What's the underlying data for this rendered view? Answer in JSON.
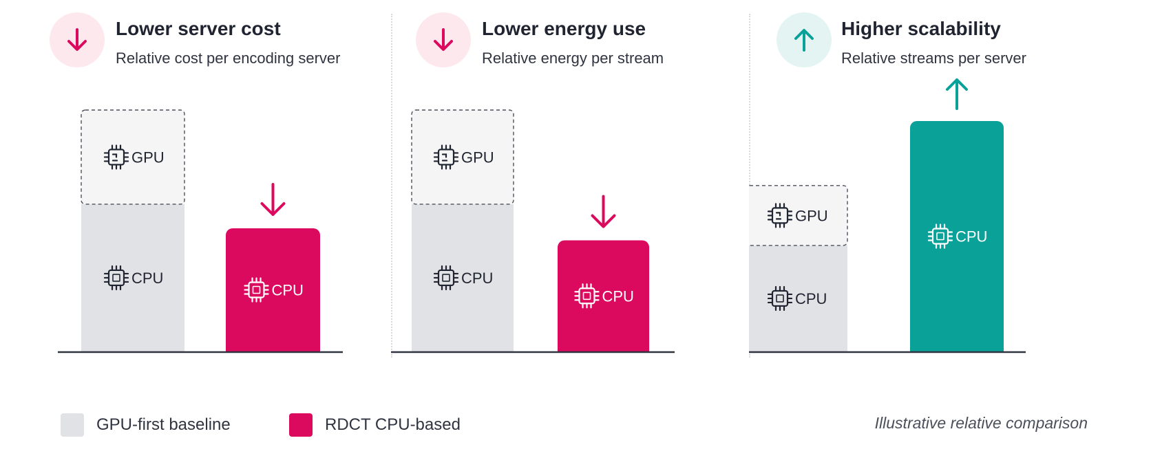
{
  "colors": {
    "baseline": "#e1e2e6",
    "gpu_segment": "#f5f5f6",
    "rdct": "#dc0a5e",
    "scalability": "#0aa198",
    "down_arrow": "#dc0a5e",
    "up_arrow": "#0aa198",
    "axis": "#2f3440",
    "label_dark": "#1f2430",
    "label_light": "#ffffff"
  },
  "legend": {
    "items": [
      {
        "label": "GPU-first baseline",
        "color": "#e1e2e6"
      },
      {
        "label": "RDCT CPU-based",
        "color": "#dc0a5e"
      }
    ],
    "note": "Illustrative relative comparison"
  },
  "chart_data": [
    {
      "type": "bar",
      "title": "Lower server cost",
      "subtitle": "Relative cost per encoding server",
      "direction": "down",
      "icon": "down-arrow-icon",
      "ylim": [
        0,
        1.0
      ],
      "bars": [
        {
          "series": "GPU-first baseline",
          "stacked": true,
          "segments": [
            {
              "label": "CPU",
              "value": 0.61
            },
            {
              "label": "GPU",
              "value": 0.39
            }
          ]
        },
        {
          "series": "RDCT CPU-based",
          "stacked": false,
          "segments": [
            {
              "label": "CPU",
              "value": 0.51
            }
          ]
        }
      ]
    },
    {
      "type": "bar",
      "title": "Lower energy use",
      "subtitle": "Relative energy per stream",
      "direction": "down",
      "icon": "down-arrow-icon",
      "ylim": [
        0,
        1.0
      ],
      "bars": [
        {
          "series": "GPU-first baseline",
          "stacked": true,
          "segments": [
            {
              "label": "CPU",
              "value": 0.61
            },
            {
              "label": "GPU",
              "value": 0.39
            }
          ]
        },
        {
          "series": "RDCT CPU-based",
          "stacked": false,
          "segments": [
            {
              "label": "CPU",
              "value": 0.46
            }
          ]
        }
      ]
    },
    {
      "type": "bar",
      "title": "Higher scalability",
      "subtitle": "Relative streams per server",
      "direction": "up",
      "icon": "up-arrow-icon",
      "ylim": [
        0,
        1.0
      ],
      "bars": [
        {
          "series": "GPU-first baseline",
          "stacked": true,
          "segments": [
            {
              "label": "CPU",
              "value": 0.46
            },
            {
              "label": "GPU",
              "value": 0.26
            }
          ]
        },
        {
          "series": "RDCT CPU-based",
          "stacked": false,
          "segments": [
            {
              "label": "CPU",
              "value": 1.0
            }
          ]
        }
      ]
    }
  ]
}
